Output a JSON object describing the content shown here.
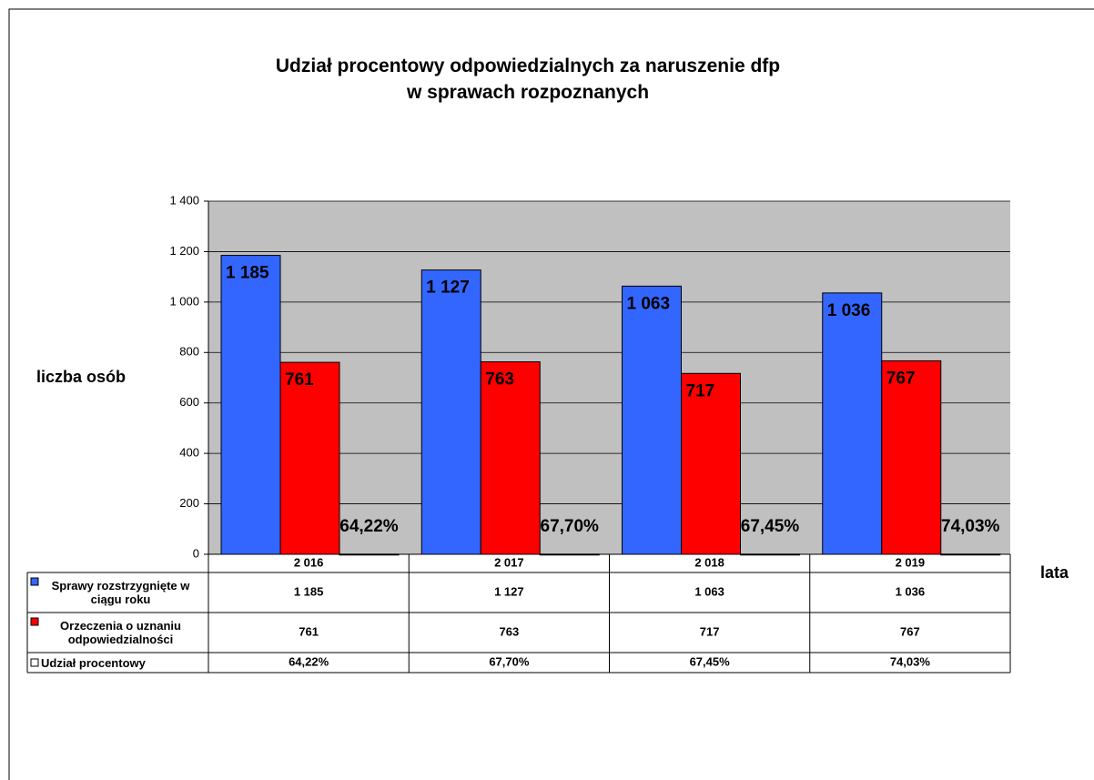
{
  "chart_data": {
    "type": "bar",
    "title": "Udział procentowy odpowiedzialnych za naruszenie dfp w sprawach rozpoznanych",
    "y_label": "liczba osób",
    "x_label": "lata",
    "categories": [
      "2 016",
      "2 017",
      "2 018",
      "2 019"
    ],
    "series": [
      {
        "name": "Sprawy rozstrzygnięte w ciągu roku",
        "color": "#3366ff",
        "values": [
          1185,
          1127,
          1063,
          1036
        ],
        "value_labels": [
          "1 185",
          "1 127",
          "1 063",
          "1 036"
        ]
      },
      {
        "name": "Orzeczenia o uznaniu odpowiedzialności",
        "color": "#ff0000",
        "values": [
          761,
          763,
          717,
          767
        ]
      },
      {
        "name": "Udział procentowy",
        "color": "#ffffff",
        "values": [
          0.6422,
          0.677,
          0.6745,
          0.7403
        ],
        "value_labels": [
          "64,22%",
          "67,70%",
          "67,45%",
          "74,03%"
        ]
      }
    ],
    "ylim": [
      0,
      1400
    ],
    "yticks": [
      0,
      200,
      400,
      600,
      800,
      {
        "value": 1000,
        "label": "1 000"
      },
      {
        "value": 1200,
        "label": "1 200"
      },
      {
        "value": 1400,
        "label": "1 400"
      }
    ],
    "grid": true,
    "plot_background": "#c0c0c0"
  }
}
